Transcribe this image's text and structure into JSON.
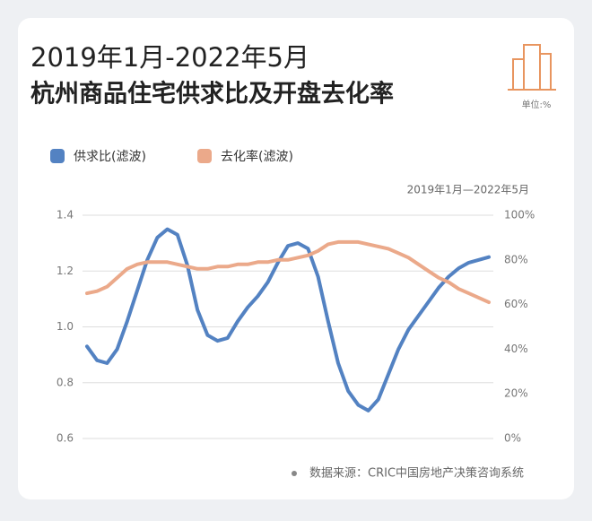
{
  "chart_data": {
    "type": "line",
    "title": "2019年1月-2022年5月",
    "subtitle": "杭州商品住宅供求比及开盘去化率",
    "unit": "单位:%",
    "xlabel": "2019年1月—2022年5月",
    "source": "数据来源：CRIC中国房地产决策咨询系统",
    "ylim": [
      0.6,
      1.4
    ],
    "yticks": [
      0.6,
      0.8,
      {
        "value": 1,
        "label": "1.0"
      },
      1.2,
      1.4
    ],
    "y2lim": [
      0,
      100
    ],
    "y2ticks": [
      {
        "value": 0,
        "label": "0%"
      },
      {
        "value": 20,
        "label": "20%"
      },
      {
        "value": 40,
        "label": "40%"
      },
      {
        "value": 60,
        "label": "60%"
      },
      {
        "value": 80,
        "label": "80%"
      },
      {
        "value": 100,
        "label": "100%"
      }
    ],
    "grid": true,
    "legend": "top-left",
    "series": [
      {
        "name": "供求比(滤波)",
        "color": "#5382c2",
        "values": [
          0.93,
          0.88,
          0.87,
          0.92,
          1.02,
          1.13,
          1.24,
          1.32,
          1.35,
          1.33,
          1.22,
          1.06,
          0.97,
          0.95,
          0.96,
          1.02,
          1.07,
          1.11,
          1.16,
          1.23,
          1.29,
          1.3,
          1.28,
          1.18,
          1.02,
          0.87,
          0.77,
          0.72,
          0.7,
          0.74,
          0.83,
          0.92,
          0.99,
          1.04,
          1.09,
          1.14,
          1.18,
          1.21,
          1.23,
          1.24,
          1.25
        ]
      },
      {
        "name": "去化率(滤波)",
        "color": "#eba98a",
        "axis": "y2",
        "values": [
          65,
          66,
          68,
          72,
          76,
          78,
          79,
          79,
          79,
          78,
          77,
          76,
          76,
          77,
          77,
          78,
          78,
          79,
          79,
          80,
          80,
          81,
          82,
          84,
          87,
          88,
          88,
          88,
          87,
          86,
          85,
          83,
          81,
          78,
          75,
          72,
          70,
          67,
          65,
          63,
          61
        ]
      }
    ]
  }
}
